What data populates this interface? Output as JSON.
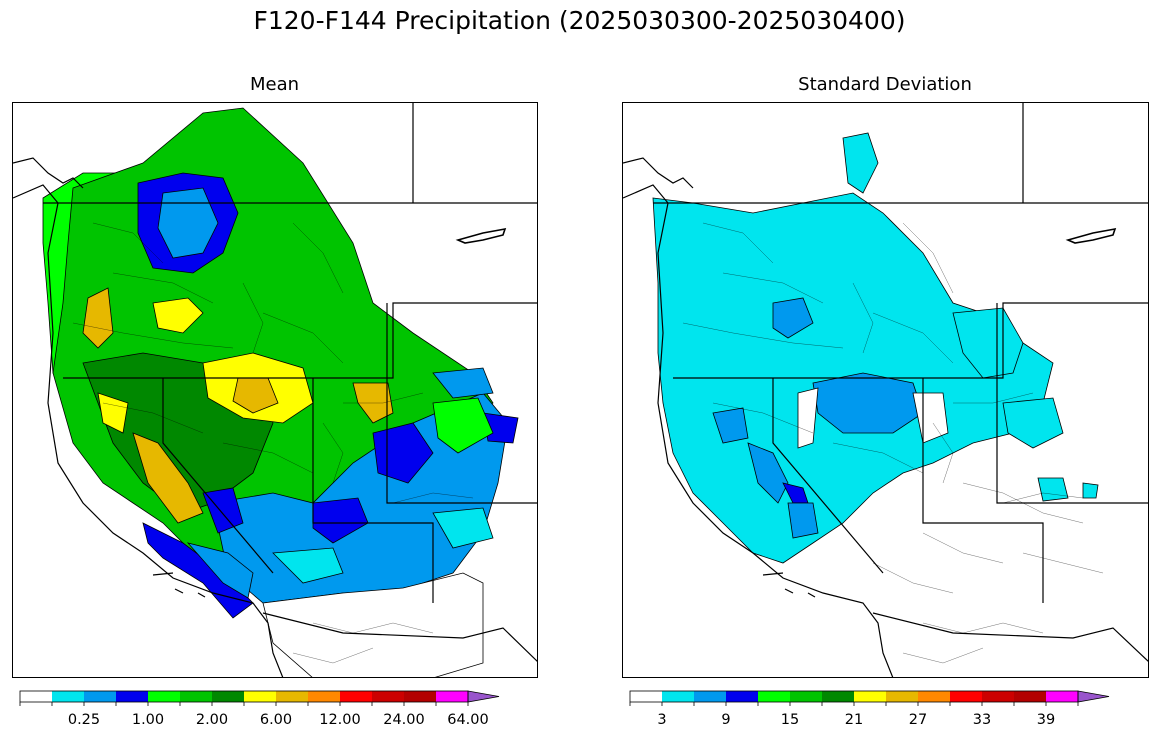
{
  "title": "F120-F144 Precipitation (2025030300-2025030400)",
  "colors": {
    "scale": [
      "#ffffff",
      "#00e5ee",
      "#0099ee",
      "#0000ee",
      "#00ff00",
      "#00c400",
      "#008800",
      "#ffff00",
      "#e6b800",
      "#ff8800",
      "#ff0000",
      "#cc0000",
      "#b30000",
      "#ff00ff",
      "#9955cc"
    ]
  },
  "panels": [
    {
      "title": "Mean",
      "colorbar": {
        "labels": [
          "0.25",
          "1.00",
          "2.00",
          "6.00",
          "12.00",
          "24.00",
          "64.00"
        ],
        "label_at_boundary": [
          2,
          4,
          6,
          8,
          10,
          12,
          14
        ]
      }
    },
    {
      "title": "Standard Deviation",
      "colorbar": {
        "labels": [
          "3",
          "9",
          "15",
          "21",
          "27",
          "33",
          "39"
        ],
        "label_at_boundary": [
          1,
          3,
          5,
          7,
          9,
          11,
          13
        ]
      }
    }
  ]
}
